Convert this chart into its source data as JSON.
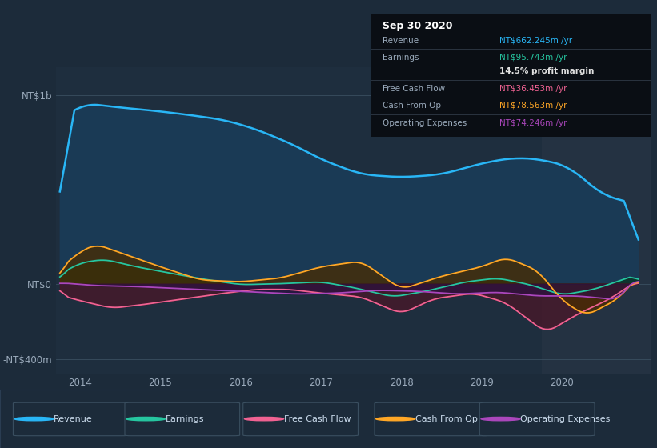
{
  "background_color": "#1c2b3a",
  "plot_bg_color": "#1e2e3e",
  "highlight_bg_color": "#243242",
  "title": "Sep 30 2020",
  "yticks_labels": [
    "NT$1b",
    "NT$0",
    "-NT$400m"
  ],
  "yticks_values": [
    1000,
    0,
    -400
  ],
  "xticks": [
    2014,
    2015,
    2016,
    2017,
    2018,
    2019,
    2020
  ],
  "xlim": [
    2013.7,
    2021.1
  ],
  "ylim": [
    -480,
    1150
  ],
  "series": {
    "revenue": {
      "color": "#29b6f6",
      "fill_color": "#1a3a55",
      "label": "Revenue"
    },
    "earnings": {
      "color": "#26c6a0",
      "fill_color": "#0d3328",
      "label": "Earnings"
    },
    "free_cash_flow": {
      "color": "#f06292",
      "fill_color": "#4a1628",
      "label": "Free Cash Flow"
    },
    "cash_from_op": {
      "color": "#ffa726",
      "fill_color": "#4a2c00",
      "label": "Cash From Op"
    },
    "operating_expenses": {
      "color": "#ab47bc",
      "fill_color": "#2d1040",
      "label": "Operating Expenses"
    }
  },
  "legend_entries": [
    {
      "label": "Revenue",
      "color": "#29b6f6"
    },
    {
      "label": "Earnings",
      "color": "#26c6a0"
    },
    {
      "label": "Free Cash Flow",
      "color": "#f06292"
    },
    {
      "label": "Cash From Op",
      "color": "#ffa726"
    },
    {
      "label": "Operating Expenses",
      "color": "#ab47bc"
    }
  ]
}
